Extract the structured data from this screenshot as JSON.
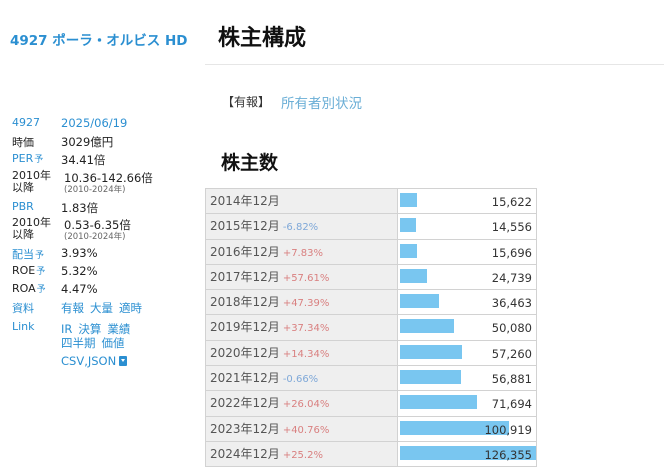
{
  "company": {
    "title": "4927 ポーラ・オルビス HD"
  },
  "sidebar": {
    "code": "4927",
    "date": "2025/06/19",
    "market_cap_label": "時価",
    "market_cap": "3029億円",
    "per_label": "PER",
    "per_yo": "予",
    "per": "34.41倍",
    "per_range_label": "2010年以降",
    "per_range": "10.36-142.66倍",
    "per_range_years": "(2010-2024年)",
    "pbr_label": "PBR",
    "pbr": "1.83倍",
    "pbr_range_label": "2010年以降",
    "pbr_range": "0.53-6.35倍",
    "pbr_range_years": "(2010-2024年)",
    "dividend_label": "配当",
    "dividend_yo": "予",
    "dividend": "3.93%",
    "roe_label": "ROE",
    "roe_yo": "予",
    "roe": "5.32%",
    "roa_label": "ROA",
    "roa_yo": "予",
    "roa": "4.47%",
    "docs_label": "資料",
    "docs_links": [
      "有報",
      "大量",
      "適時"
    ],
    "link_label": "Link",
    "link_links_1": [
      "IR",
      "決算",
      "業績"
    ],
    "link_links_2": [
      "四半期",
      "価値"
    ],
    "download_label": "CSV,JSON",
    "download_icon": "download-icon"
  },
  "main": {
    "title": "株主構成",
    "report_tag": "【有報】",
    "report_link": "所有者別状況",
    "section_title": "株主数"
  },
  "colors": {
    "accent": "#2b8fd1",
    "bar": "#79c6f0",
    "up": "#d98080",
    "down": "#7fa8d8"
  },
  "table": {
    "max_value": 126355,
    "rows": [
      {
        "year": "2014年12月",
        "change": "",
        "dir": "",
        "value": 15622,
        "value_text": "15,622"
      },
      {
        "year": "2015年12月",
        "change": "-6.82%",
        "dir": "down",
        "value": 14556,
        "value_text": "14,556"
      },
      {
        "year": "2016年12月",
        "change": "+7.83%",
        "dir": "up",
        "value": 15696,
        "value_text": "15,696"
      },
      {
        "year": "2017年12月",
        "change": "+57.61%",
        "dir": "up",
        "value": 24739,
        "value_text": "24,739"
      },
      {
        "year": "2018年12月",
        "change": "+47.39%",
        "dir": "up",
        "value": 36463,
        "value_text": "36,463"
      },
      {
        "year": "2019年12月",
        "change": "+37.34%",
        "dir": "up",
        "value": 50080,
        "value_text": "50,080"
      },
      {
        "year": "2020年12月",
        "change": "+14.34%",
        "dir": "up",
        "value": 57260,
        "value_text": "57,260"
      },
      {
        "year": "2021年12月",
        "change": "-0.66%",
        "dir": "down",
        "value": 56881,
        "value_text": "56,881"
      },
      {
        "year": "2022年12月",
        "change": "+26.04%",
        "dir": "up",
        "value": 71694,
        "value_text": "71,694"
      },
      {
        "year": "2023年12月",
        "change": "+40.76%",
        "dir": "up",
        "value": 100919,
        "value_text": "100,919"
      },
      {
        "year": "2024年12月",
        "change": "+25.2%",
        "dir": "up",
        "value": 126355,
        "value_text": "126,355"
      }
    ]
  }
}
